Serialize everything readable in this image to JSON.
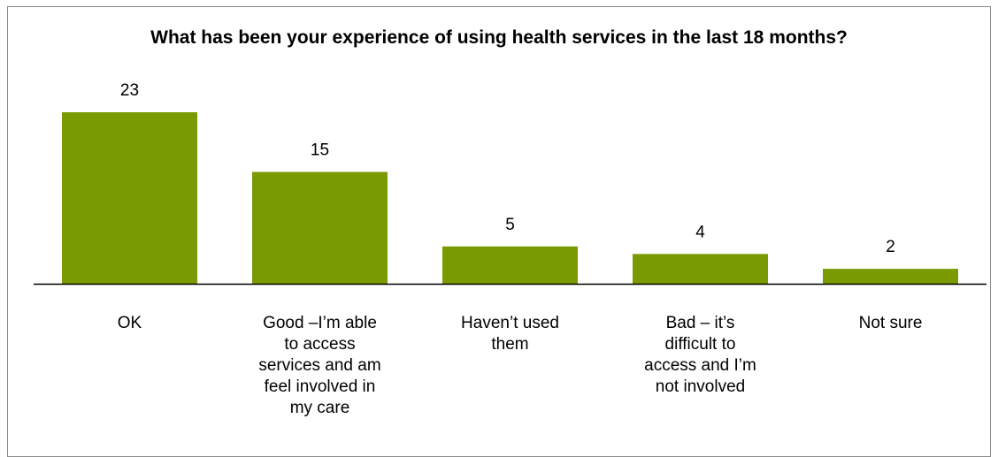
{
  "chart_data": {
    "type": "bar",
    "title": "What has been your experience of using health services in the last 18 months?",
    "categories": [
      "OK",
      "Good –I’m able to access services and am feel involved in my care",
      "Haven’t used them",
      "Bad – it’s difficult to access and I’m not involved",
      "Not sure"
    ],
    "category_lines": [
      [
        "OK"
      ],
      [
        "Good –I’m able",
        "to access",
        "services and am",
        "feel involved in",
        "my care"
      ],
      [
        "Haven’t used",
        "them"
      ],
      [
        "Bad – it’s",
        "difficult to",
        "access and I’m",
        "not involved"
      ],
      [
        "Not sure"
      ]
    ],
    "values": [
      23,
      15,
      5,
      4,
      2
    ],
    "data_labels": [
      "23",
      "15",
      "5",
      "4",
      "2"
    ],
    "ylim": [
      0,
      23
    ],
    "grid": false,
    "legend": "none",
    "bar_color": "#7a9a01",
    "xlabel": "",
    "ylabel": ""
  }
}
